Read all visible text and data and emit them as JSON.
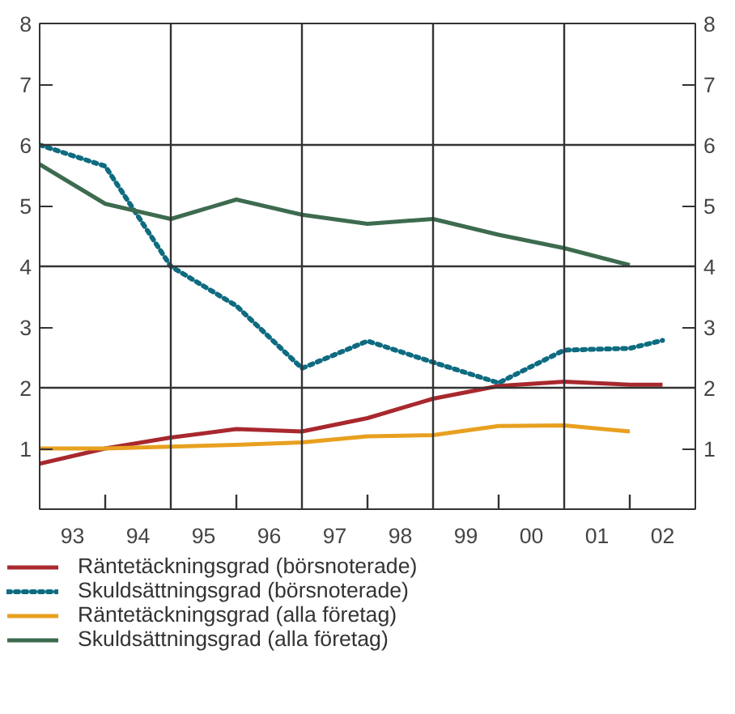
{
  "chart_data": {
    "type": "line",
    "x": [
      1992.5,
      1993.5,
      1994.5,
      1995.5,
      1996.5,
      1997.5,
      1998.5,
      1999.5,
      2000.5,
      2001.5,
      2002.0
    ],
    "series": [
      {
        "name": "Räntetäckningsgrad (börsnoterade)",
        "color": "#a8282e",
        "line_style": "solid",
        "values": [
          0.75,
          1.0,
          1.18,
          1.32,
          1.28,
          1.5,
          1.82,
          2.03,
          2.1,
          2.05,
          2.05
        ]
      },
      {
        "name": "Skuldsättningsgrad (börsnoterade)",
        "color": "#0e6b80",
        "line_style": "dotted",
        "values": [
          6.0,
          5.65,
          4.0,
          3.35,
          2.32,
          2.77,
          2.42,
          2.08,
          2.62,
          2.65,
          2.78
        ]
      },
      {
        "name": "Räntetäckningsgrad (alla företag)",
        "color": "#e8a020",
        "line_style": "solid",
        "values": [
          1.0,
          1.0,
          1.03,
          1.06,
          1.1,
          1.2,
          1.22,
          1.37,
          1.38,
          1.28,
          null
        ]
      },
      {
        "name": "Skuldsättningsgrad (alla företag)",
        "color": "#3d6b4f",
        "line_style": "solid",
        "values": [
          5.68,
          5.03,
          4.78,
          5.1,
          4.85,
          4.7,
          4.78,
          4.52,
          4.3,
          4.02,
          null
        ]
      }
    ],
    "xlim": [
      1992.5,
      2002.5
    ],
    "xticks": [
      {
        "value": 1993,
        "label": "93"
      },
      {
        "value": 1993.5,
        "label": null
      },
      {
        "value": 1994,
        "label": "94"
      },
      {
        "value": 1995,
        "label": "95"
      },
      {
        "value": 1995.5,
        "label": null
      },
      {
        "value": 1996,
        "label": "96"
      },
      {
        "value": 1997,
        "label": "97"
      },
      {
        "value": 1997.5,
        "label": null
      },
      {
        "value": 1998,
        "label": "98"
      },
      {
        "value": 1999,
        "label": "99"
      },
      {
        "value": 1999.5,
        "label": null
      },
      {
        "value": 2000,
        "label": "00"
      },
      {
        "value": 2001,
        "label": "01"
      },
      {
        "value": 2001.5,
        "label": null
      },
      {
        "value": 2002,
        "label": "02"
      }
    ],
    "ylim": [
      0,
      8
    ],
    "yticks": [
      1,
      2,
      3,
      4,
      5,
      6,
      7,
      8
    ],
    "y2lim": [
      0,
      8
    ],
    "y2ticks": [
      1,
      2,
      3,
      4,
      5,
      6,
      7,
      8
    ],
    "ref_lines": [
      {
        "axis": "x",
        "value": 1994.5
      },
      {
        "axis": "x",
        "value": 1996.5
      },
      {
        "axis": "x",
        "value": 1998.5
      },
      {
        "axis": "x",
        "value": 2000.5
      },
      {
        "axis": "y",
        "value": 2
      },
      {
        "axis": "y",
        "value": 4
      },
      {
        "axis": "y",
        "value": 6
      }
    ],
    "grid": false,
    "legend": "bottom"
  }
}
